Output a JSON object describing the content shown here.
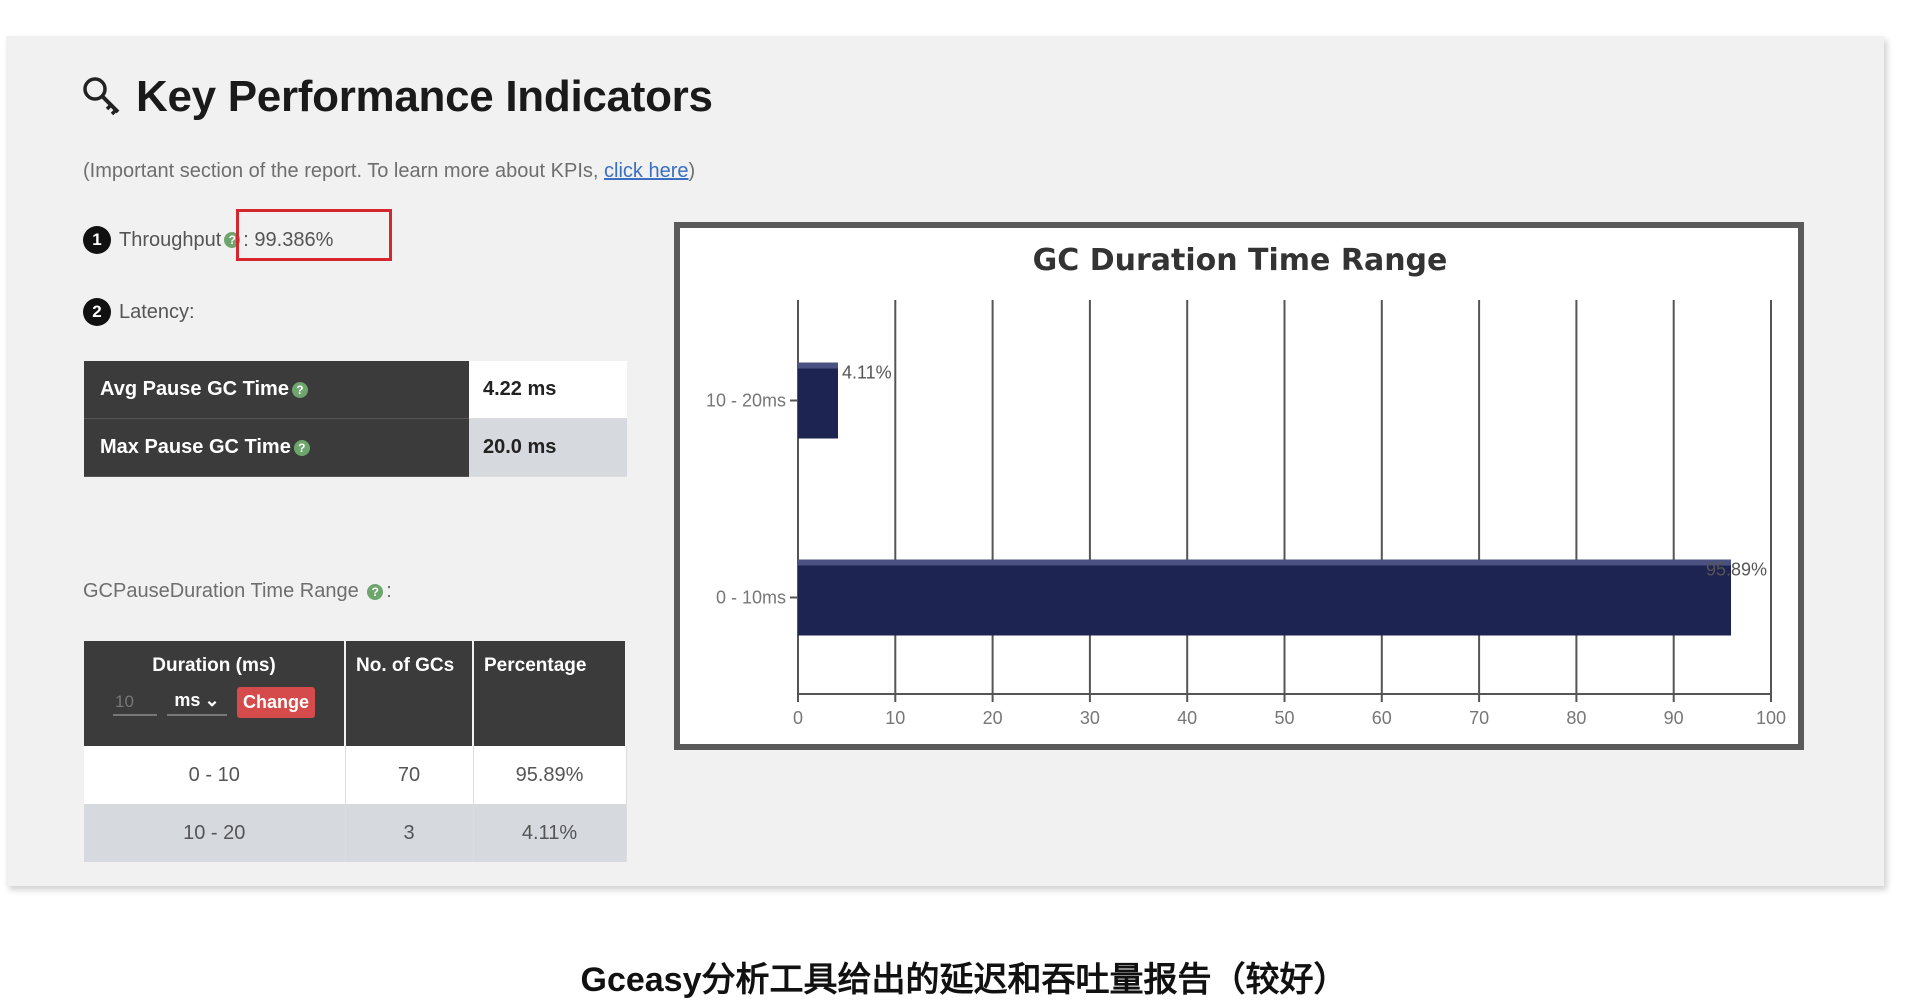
{
  "header": {
    "title": "Key Performance Indicators",
    "subtitle_prefix": "(Important section of the report. To learn more about KPIs, ",
    "subtitle_link": "click here",
    "subtitle_suffix": ")"
  },
  "throughput": {
    "num": "1",
    "label": "Throughput",
    "value": ": 99.386%"
  },
  "latency": {
    "num": "2",
    "label": "Latency:",
    "rows": [
      {
        "label": "Avg Pause GC Time",
        "value": "4.22 ms"
      },
      {
        "label": "Max Pause GC Time",
        "value": "20.0 ms"
      }
    ]
  },
  "range_section": {
    "label": "GCPauseDuration Time Range",
    "label_suffix": ":",
    "headers": {
      "duration": "Duration (ms)",
      "count": "No. of GCs",
      "percentage": "Percentage"
    },
    "input_value": "10",
    "unit": "ms",
    "change_button": "Change",
    "rows": [
      {
        "duration": "0 - 10",
        "count": "70",
        "percentage": "95.89%"
      },
      {
        "duration": "10 - 20",
        "count": "3",
        "percentage": "4.11%"
      }
    ]
  },
  "help_icon": "question-circle-icon",
  "colors": {
    "bar": "#1e2452",
    "highlight": "#d3262d",
    "header_bg": "#3b3b3b",
    "change_btn": "#d54b4b"
  },
  "chart_data": {
    "type": "bar",
    "orientation": "horizontal",
    "title": "GC Duration Time Range",
    "categories": [
      "10 - 20ms",
      "0 - 10ms"
    ],
    "values": [
      4.11,
      95.89
    ],
    "value_labels": [
      "4.11%",
      "95.89%"
    ],
    "xlim": [
      0,
      100
    ],
    "xticks": [
      "0",
      "10",
      "20",
      "30",
      "40",
      "50",
      "60",
      "70",
      "80",
      "90",
      "100"
    ],
    "grid": true
  },
  "caption": "Gceasy分析工具给出的延迟和吞吐量报告（较好）"
}
